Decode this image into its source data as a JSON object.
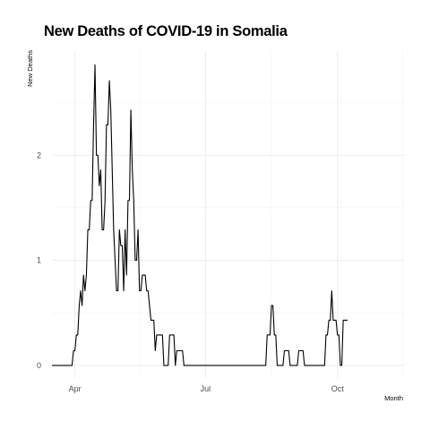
{
  "chart_data": {
    "type": "line",
    "title": "New Deaths of COVID-19 in Somalia",
    "xlabel": "Month",
    "ylabel": "New Deaths",
    "x_ticks": [
      {
        "label": "Apr",
        "date": "2020-04-01"
      },
      {
        "label": "Jul",
        "date": "2020-07-01"
      },
      {
        "label": "Oct",
        "date": "2020-10-01"
      }
    ],
    "y_ticks": [
      0,
      1,
      2
    ],
    "xlim": [
      "2020-03-16",
      "2020-11-17"
    ],
    "ylim": [
      -0.12,
      3.0
    ],
    "grid": true,
    "legend": "none",
    "line_color": "#000000",
    "series": [
      {
        "points": [
          [
            "2020-03-16",
            0
          ],
          [
            "2020-03-30",
            0
          ],
          [
            "2020-03-31",
            0.14
          ],
          [
            "2020-04-01",
            0.14
          ],
          [
            "2020-04-02",
            0.29
          ],
          [
            "2020-04-03",
            0.29
          ],
          [
            "2020-04-04",
            0.57
          ],
          [
            "2020-04-05",
            0.71
          ],
          [
            "2020-04-06",
            0.57
          ],
          [
            "2020-04-07",
            0.86
          ],
          [
            "2020-04-08",
            0.71
          ],
          [
            "2020-04-09",
            0.86
          ],
          [
            "2020-04-10",
            1.29
          ],
          [
            "2020-04-11",
            1.29
          ],
          [
            "2020-04-12",
            1.57
          ],
          [
            "2020-04-13",
            1.57
          ],
          [
            "2020-04-14",
            2.29
          ],
          [
            "2020-04-15",
            2.86
          ],
          [
            "2020-04-16",
            2.0
          ],
          [
            "2020-04-17",
            2.0
          ],
          [
            "2020-04-18",
            1.71
          ],
          [
            "2020-04-19",
            1.86
          ],
          [
            "2020-04-20",
            1.29
          ],
          [
            "2020-04-21",
            1.29
          ],
          [
            "2020-04-22",
            1.57
          ],
          [
            "2020-04-23",
            2.29
          ],
          [
            "2020-04-24",
            2.29
          ],
          [
            "2020-04-25",
            2.71
          ],
          [
            "2020-04-26",
            2.43
          ],
          [
            "2020-04-27",
            1.86
          ],
          [
            "2020-04-28",
            1.29
          ],
          [
            "2020-04-29",
            1.0
          ],
          [
            "2020-04-30",
            0.71
          ],
          [
            "2020-05-01",
            0.71
          ],
          [
            "2020-05-02",
            1.29
          ],
          [
            "2020-05-03",
            1.14
          ],
          [
            "2020-05-04",
            1.14
          ],
          [
            "2020-05-05",
            0.71
          ],
          [
            "2020-05-06",
            1.29
          ],
          [
            "2020-05-07",
            0.86
          ],
          [
            "2020-05-08",
            1.57
          ],
          [
            "2020-05-09",
            1.57
          ],
          [
            "2020-05-10",
            2.43
          ],
          [
            "2020-05-11",
            1.86
          ],
          [
            "2020-05-12",
            1.57
          ],
          [
            "2020-05-13",
            1.0
          ],
          [
            "2020-05-14",
            1.0
          ],
          [
            "2020-05-15",
            1.29
          ],
          [
            "2020-05-16",
            0.71
          ],
          [
            "2020-05-17",
            0.71
          ],
          [
            "2020-05-18",
            0.86
          ],
          [
            "2020-05-20",
            0.86
          ],
          [
            "2020-05-21",
            0.71
          ],
          [
            "2020-05-22",
            0.71
          ],
          [
            "2020-05-23",
            0.57
          ],
          [
            "2020-05-24",
            0.43
          ],
          [
            "2020-05-26",
            0.43
          ],
          [
            "2020-05-27",
            0.14
          ],
          [
            "2020-05-28",
            0.29
          ],
          [
            "2020-06-01",
            0.29
          ],
          [
            "2020-06-02",
            0
          ],
          [
            "2020-06-05",
            0
          ],
          [
            "2020-06-06",
            0.29
          ],
          [
            "2020-06-09",
            0.29
          ],
          [
            "2020-06-10",
            0
          ],
          [
            "2020-06-11",
            0.14
          ],
          [
            "2020-06-15",
            0.14
          ],
          [
            "2020-06-16",
            0
          ],
          [
            "2020-08-12",
            0
          ],
          [
            "2020-08-13",
            0.29
          ],
          [
            "2020-08-15",
            0.29
          ],
          [
            "2020-08-16",
            0.57
          ],
          [
            "2020-08-17",
            0.57
          ],
          [
            "2020-08-18",
            0.29
          ],
          [
            "2020-08-19",
            0.29
          ],
          [
            "2020-08-20",
            0
          ],
          [
            "2020-08-24",
            0
          ],
          [
            "2020-08-25",
            0.14
          ],
          [
            "2020-08-28",
            0.14
          ],
          [
            "2020-08-29",
            0
          ],
          [
            "2020-09-03",
            0
          ],
          [
            "2020-09-04",
            0.14
          ],
          [
            "2020-09-07",
            0.14
          ],
          [
            "2020-09-08",
            0
          ],
          [
            "2020-09-22",
            0
          ],
          [
            "2020-09-23",
            0.29
          ],
          [
            "2020-09-24",
            0.29
          ],
          [
            "2020-09-25",
            0.43
          ],
          [
            "2020-09-26",
            0.43
          ],
          [
            "2020-09-27",
            0.71
          ],
          [
            "2020-09-28",
            0.43
          ],
          [
            "2020-09-30",
            0.43
          ],
          [
            "2020-10-01",
            0.29
          ],
          [
            "2020-10-02",
            0.29
          ],
          [
            "2020-10-03",
            0
          ],
          [
            "2020-10-04",
            0
          ],
          [
            "2020-10-05",
            0.43
          ],
          [
            "2020-10-08",
            0.43
          ]
        ]
      }
    ]
  }
}
